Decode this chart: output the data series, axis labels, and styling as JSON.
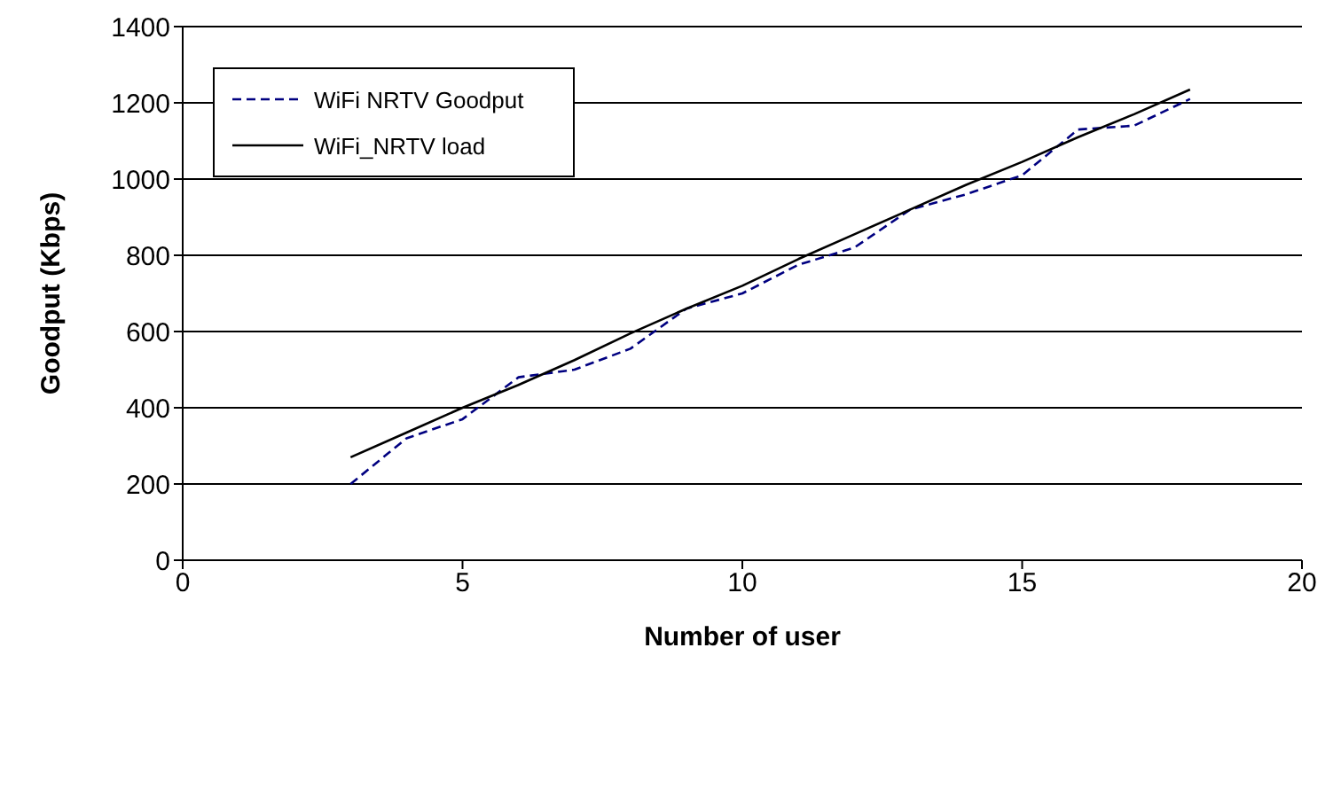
{
  "chart_data": {
    "type": "line",
    "xlabel": "Number of user",
    "ylabel": "Goodput (Kbps)",
    "x": [
      3,
      4,
      5,
      6,
      7,
      8,
      9,
      10,
      11,
      12,
      13,
      14,
      15,
      16,
      17,
      18
    ],
    "series": [
      {
        "name": "WiFi NRTV Goodput",
        "color": "#000080",
        "line_style": "dashed",
        "values": [
          200,
          320,
          370,
          480,
          500,
          555,
          660,
          700,
          775,
          820,
          920,
          960,
          1010,
          1130,
          1140,
          1210
        ]
      },
      {
        "name": "WiFi_NRTV load",
        "color": "#000000",
        "line_style": "solid",
        "values": [
          270,
          335,
          400,
          460,
          525,
          595,
          660,
          720,
          790,
          855,
          920,
          985,
          1045,
          1110,
          1170,
          1235
        ]
      }
    ],
    "xlim": [
      0,
      20
    ],
    "xticks": [
      0,
      5,
      10,
      15,
      20
    ],
    "ylim": [
      0,
      1400
    ],
    "yticks": [
      0,
      200,
      400,
      600,
      800,
      1000,
      1200,
      1400
    ],
    "grid": "y",
    "legend": "top left",
    "marker": "none"
  }
}
